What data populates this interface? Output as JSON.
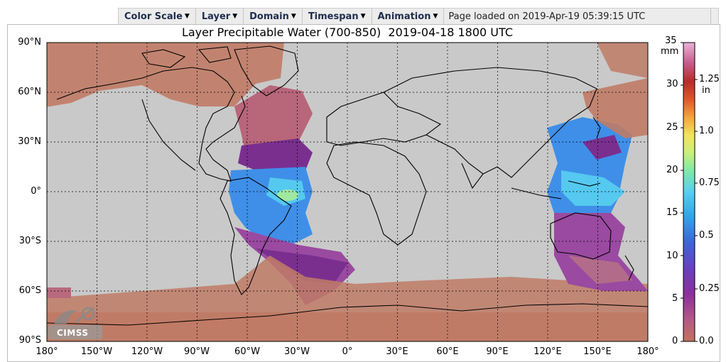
{
  "toolbar": {
    "menus": [
      {
        "label": "Color Scale"
      },
      {
        "label": "Layer"
      },
      {
        "label": "Domain"
      },
      {
        "label": "Timespan"
      },
      {
        "label": "Animation"
      }
    ],
    "status": "Page loaded on 2019-Apr-19 05:39:15 UTC",
    "caret_icon": "chevron-down-icon"
  },
  "figure": {
    "title": "Layer Precipitable Water (700-850)  2019-04-18 1800 UTC",
    "lat_labels": [
      "90°N",
      "60°N",
      "30°N",
      "0°",
      "30°S",
      "60°S",
      "90°S"
    ],
    "lon_labels": [
      "180°",
      "150°W",
      "120°W",
      "90°W",
      "60°W",
      "30°W",
      "0°",
      "30°E",
      "60°E",
      "90°E",
      "120°E",
      "150°E",
      "180°"
    ],
    "logo_text": "CIMSS",
    "colors": {
      "background_land": "#c9c9c9",
      "dry_brown": "#c07b66",
      "purple": "#7a2f8f",
      "blue": "#3f8fe8"
    }
  },
  "colorbar": {
    "mm_label": "mm",
    "in_label": "in",
    "mm_ticks": [
      "35",
      "30",
      "25",
      "20",
      "15",
      "10",
      "5",
      "0"
    ],
    "in_ticks": [
      "1.25",
      "1.0",
      "0.75",
      "0.5",
      "0.25",
      "0.0"
    ],
    "mm_range": [
      0,
      35
    ],
    "in_values": [
      1.25,
      1.0,
      0.75,
      0.5,
      0.25,
      0.0
    ]
  }
}
